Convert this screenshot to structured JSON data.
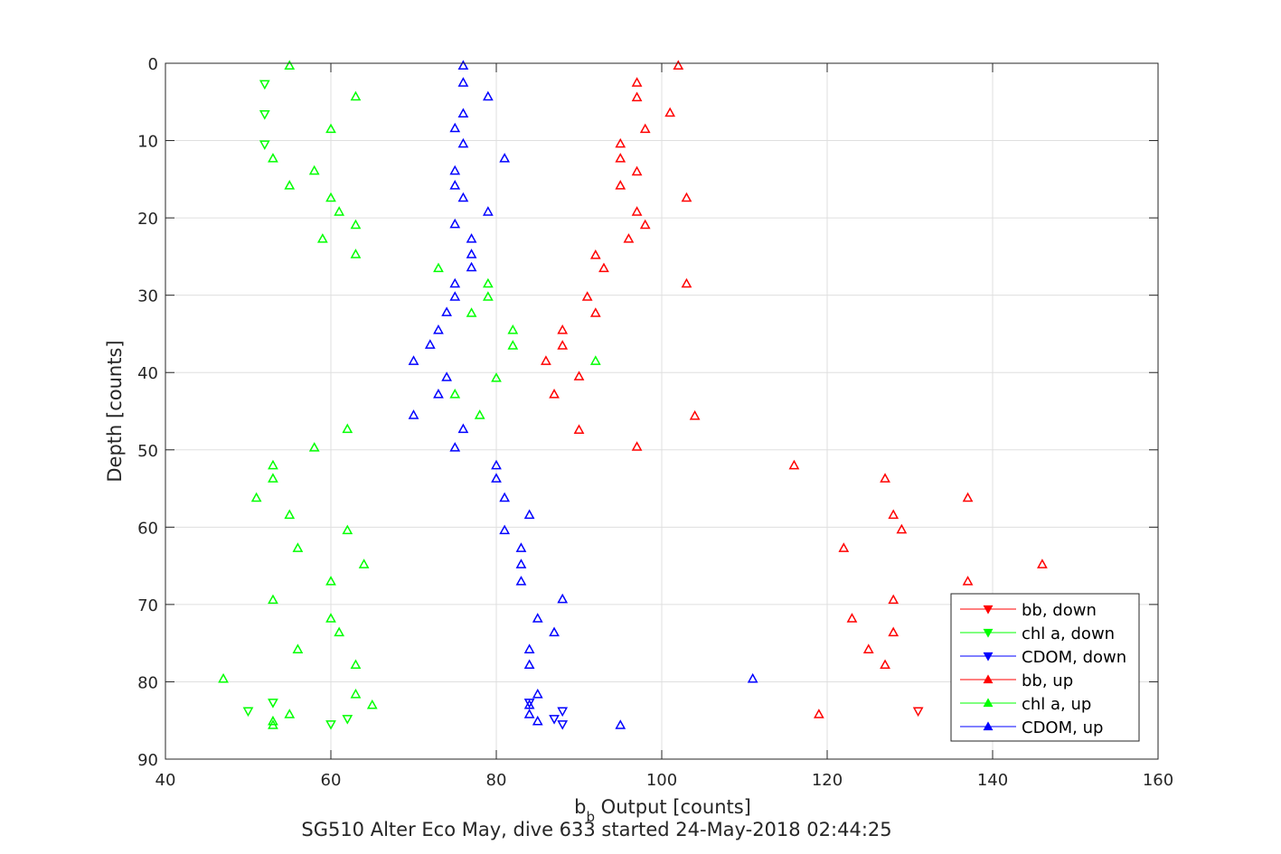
{
  "chart_data": {
    "type": "scatter",
    "xlabel_main": "b",
    "xlabel_sub": "b",
    "xlabel_rest": " Output [counts]",
    "ylabel": "Depth [counts]",
    "subtitle": "SG510 Alter Eco May, dive 633 started 24-May-2018 02:44:25",
    "xlim": [
      40,
      160
    ],
    "ylim": [
      0,
      90
    ],
    "y_reversed": true,
    "grid": true,
    "legend_position": "bottom-right",
    "x_ticks": [
      40,
      60,
      80,
      100,
      120,
      140,
      160
    ],
    "y_ticks": [
      0,
      10,
      20,
      30,
      40,
      50,
      60,
      70,
      80,
      90
    ],
    "series": [
      {
        "name": "bb, down",
        "color": "#ff0000",
        "marker": "triangle-down",
        "points": [
          [
            131,
            83.8
          ]
        ]
      },
      {
        "name": "chl a, down",
        "color": "#00ff00",
        "marker": "triangle-down",
        "points": [
          [
            52,
            2.7
          ],
          [
            52,
            6.6
          ],
          [
            52,
            10.5
          ],
          [
            50,
            83.8
          ],
          [
            53,
            82.7
          ],
          [
            60,
            85.5
          ],
          [
            62,
            84.8
          ]
        ]
      },
      {
        "name": "CDOM, down",
        "color": "#0000ff",
        "marker": "triangle-down",
        "points": [
          [
            84,
            82.7
          ],
          [
            87,
            84.8
          ],
          [
            88,
            83.8
          ],
          [
            88,
            85.5
          ]
        ]
      },
      {
        "name": "bb, up",
        "color": "#ff0000",
        "marker": "triangle-up",
        "points": [
          [
            102,
            0.3
          ],
          [
            97,
            2.5
          ],
          [
            97,
            4.4
          ],
          [
            101,
            6.4
          ],
          [
            98,
            8.5
          ],
          [
            95,
            10.4
          ],
          [
            95,
            12.3
          ],
          [
            97,
            14
          ],
          [
            95,
            15.8
          ],
          [
            103,
            17.4
          ],
          [
            97,
            19.2
          ],
          [
            98,
            20.9
          ],
          [
            96,
            22.7
          ],
          [
            92,
            24.8
          ],
          [
            93,
            26.5
          ],
          [
            103,
            28.5
          ],
          [
            91,
            30.2
          ],
          [
            92,
            32.3
          ],
          [
            88,
            34.5
          ],
          [
            88,
            36.5
          ],
          [
            86,
            38.5
          ],
          [
            90,
            40.5
          ],
          [
            87,
            42.8
          ],
          [
            104,
            45.6
          ],
          [
            90,
            47.4
          ],
          [
            97,
            49.6
          ],
          [
            116,
            52
          ],
          [
            127,
            53.7
          ],
          [
            137,
            56.2
          ],
          [
            128,
            58.4
          ],
          [
            129,
            60.3
          ],
          [
            122,
            62.7
          ],
          [
            146,
            64.8
          ],
          [
            137,
            67
          ],
          [
            128,
            69.4
          ],
          [
            123,
            71.8
          ],
          [
            128,
            73.6
          ],
          [
            125,
            75.8
          ],
          [
            127,
            77.8
          ],
          [
            119,
            84.2
          ]
        ]
      },
      {
        "name": "chl a, up",
        "color": "#00ff00",
        "marker": "triangle-up",
        "points": [
          [
            55,
            0.3
          ],
          [
            63,
            4.3
          ],
          [
            60,
            8.5
          ],
          [
            53,
            12.3
          ],
          [
            58,
            13.9
          ],
          [
            55,
            15.8
          ],
          [
            60,
            17.4
          ],
          [
            61,
            19.2
          ],
          [
            63,
            20.9
          ],
          [
            59,
            22.7
          ],
          [
            63,
            24.7
          ],
          [
            73,
            26.5
          ],
          [
            79,
            28.5
          ],
          [
            79,
            30.2
          ],
          [
            77,
            32.3
          ],
          [
            82,
            34.5
          ],
          [
            82,
            36.5
          ],
          [
            92,
            38.5
          ],
          [
            80,
            40.7
          ],
          [
            75,
            42.8
          ],
          [
            78,
            45.5
          ],
          [
            62,
            47.3
          ],
          [
            58,
            49.7
          ],
          [
            53,
            52
          ],
          [
            53,
            53.7
          ],
          [
            51,
            56.2
          ],
          [
            55,
            58.4
          ],
          [
            62,
            60.4
          ],
          [
            56,
            62.7
          ],
          [
            64,
            64.8
          ],
          [
            60,
            67
          ],
          [
            53,
            69.4
          ],
          [
            60,
            71.8
          ],
          [
            61,
            73.6
          ],
          [
            56,
            75.8
          ],
          [
            63,
            77.8
          ],
          [
            47,
            79.6
          ],
          [
            63,
            81.6
          ],
          [
            65,
            83
          ],
          [
            55,
            84.2
          ],
          [
            53,
            85.1
          ],
          [
            53,
            85.6
          ]
        ]
      },
      {
        "name": "CDOM, up",
        "color": "#0000ff",
        "marker": "triangle-up",
        "points": [
          [
            76,
            0.3
          ],
          [
            76,
            2.5
          ],
          [
            79,
            4.3
          ],
          [
            76,
            6.5
          ],
          [
            75,
            8.4
          ],
          [
            76,
            10.4
          ],
          [
            81,
            12.3
          ],
          [
            75,
            13.9
          ],
          [
            75,
            15.8
          ],
          [
            76,
            17.4
          ],
          [
            79,
            19.2
          ],
          [
            75,
            20.8
          ],
          [
            77,
            22.7
          ],
          [
            77,
            24.7
          ],
          [
            77,
            26.4
          ],
          [
            75,
            28.5
          ],
          [
            75,
            30.2
          ],
          [
            74,
            32.2
          ],
          [
            73,
            34.5
          ],
          [
            72,
            36.4
          ],
          [
            70,
            38.5
          ],
          [
            74,
            40.6
          ],
          [
            73,
            42.8
          ],
          [
            70,
            45.5
          ],
          [
            76,
            47.3
          ],
          [
            75,
            49.7
          ],
          [
            80,
            52
          ],
          [
            80,
            53.7
          ],
          [
            81,
            56.2
          ],
          [
            84,
            58.4
          ],
          [
            81,
            60.4
          ],
          [
            83,
            62.7
          ],
          [
            83,
            64.8
          ],
          [
            83,
            67
          ],
          [
            88,
            69.3
          ],
          [
            85,
            71.8
          ],
          [
            87,
            73.6
          ],
          [
            84,
            75.8
          ],
          [
            84,
            77.8
          ],
          [
            111,
            79.6
          ],
          [
            85,
            81.6
          ],
          [
            84,
            83
          ],
          [
            84,
            84.2
          ],
          [
            85,
            85.1
          ],
          [
            95,
            85.6
          ]
        ]
      }
    ]
  }
}
